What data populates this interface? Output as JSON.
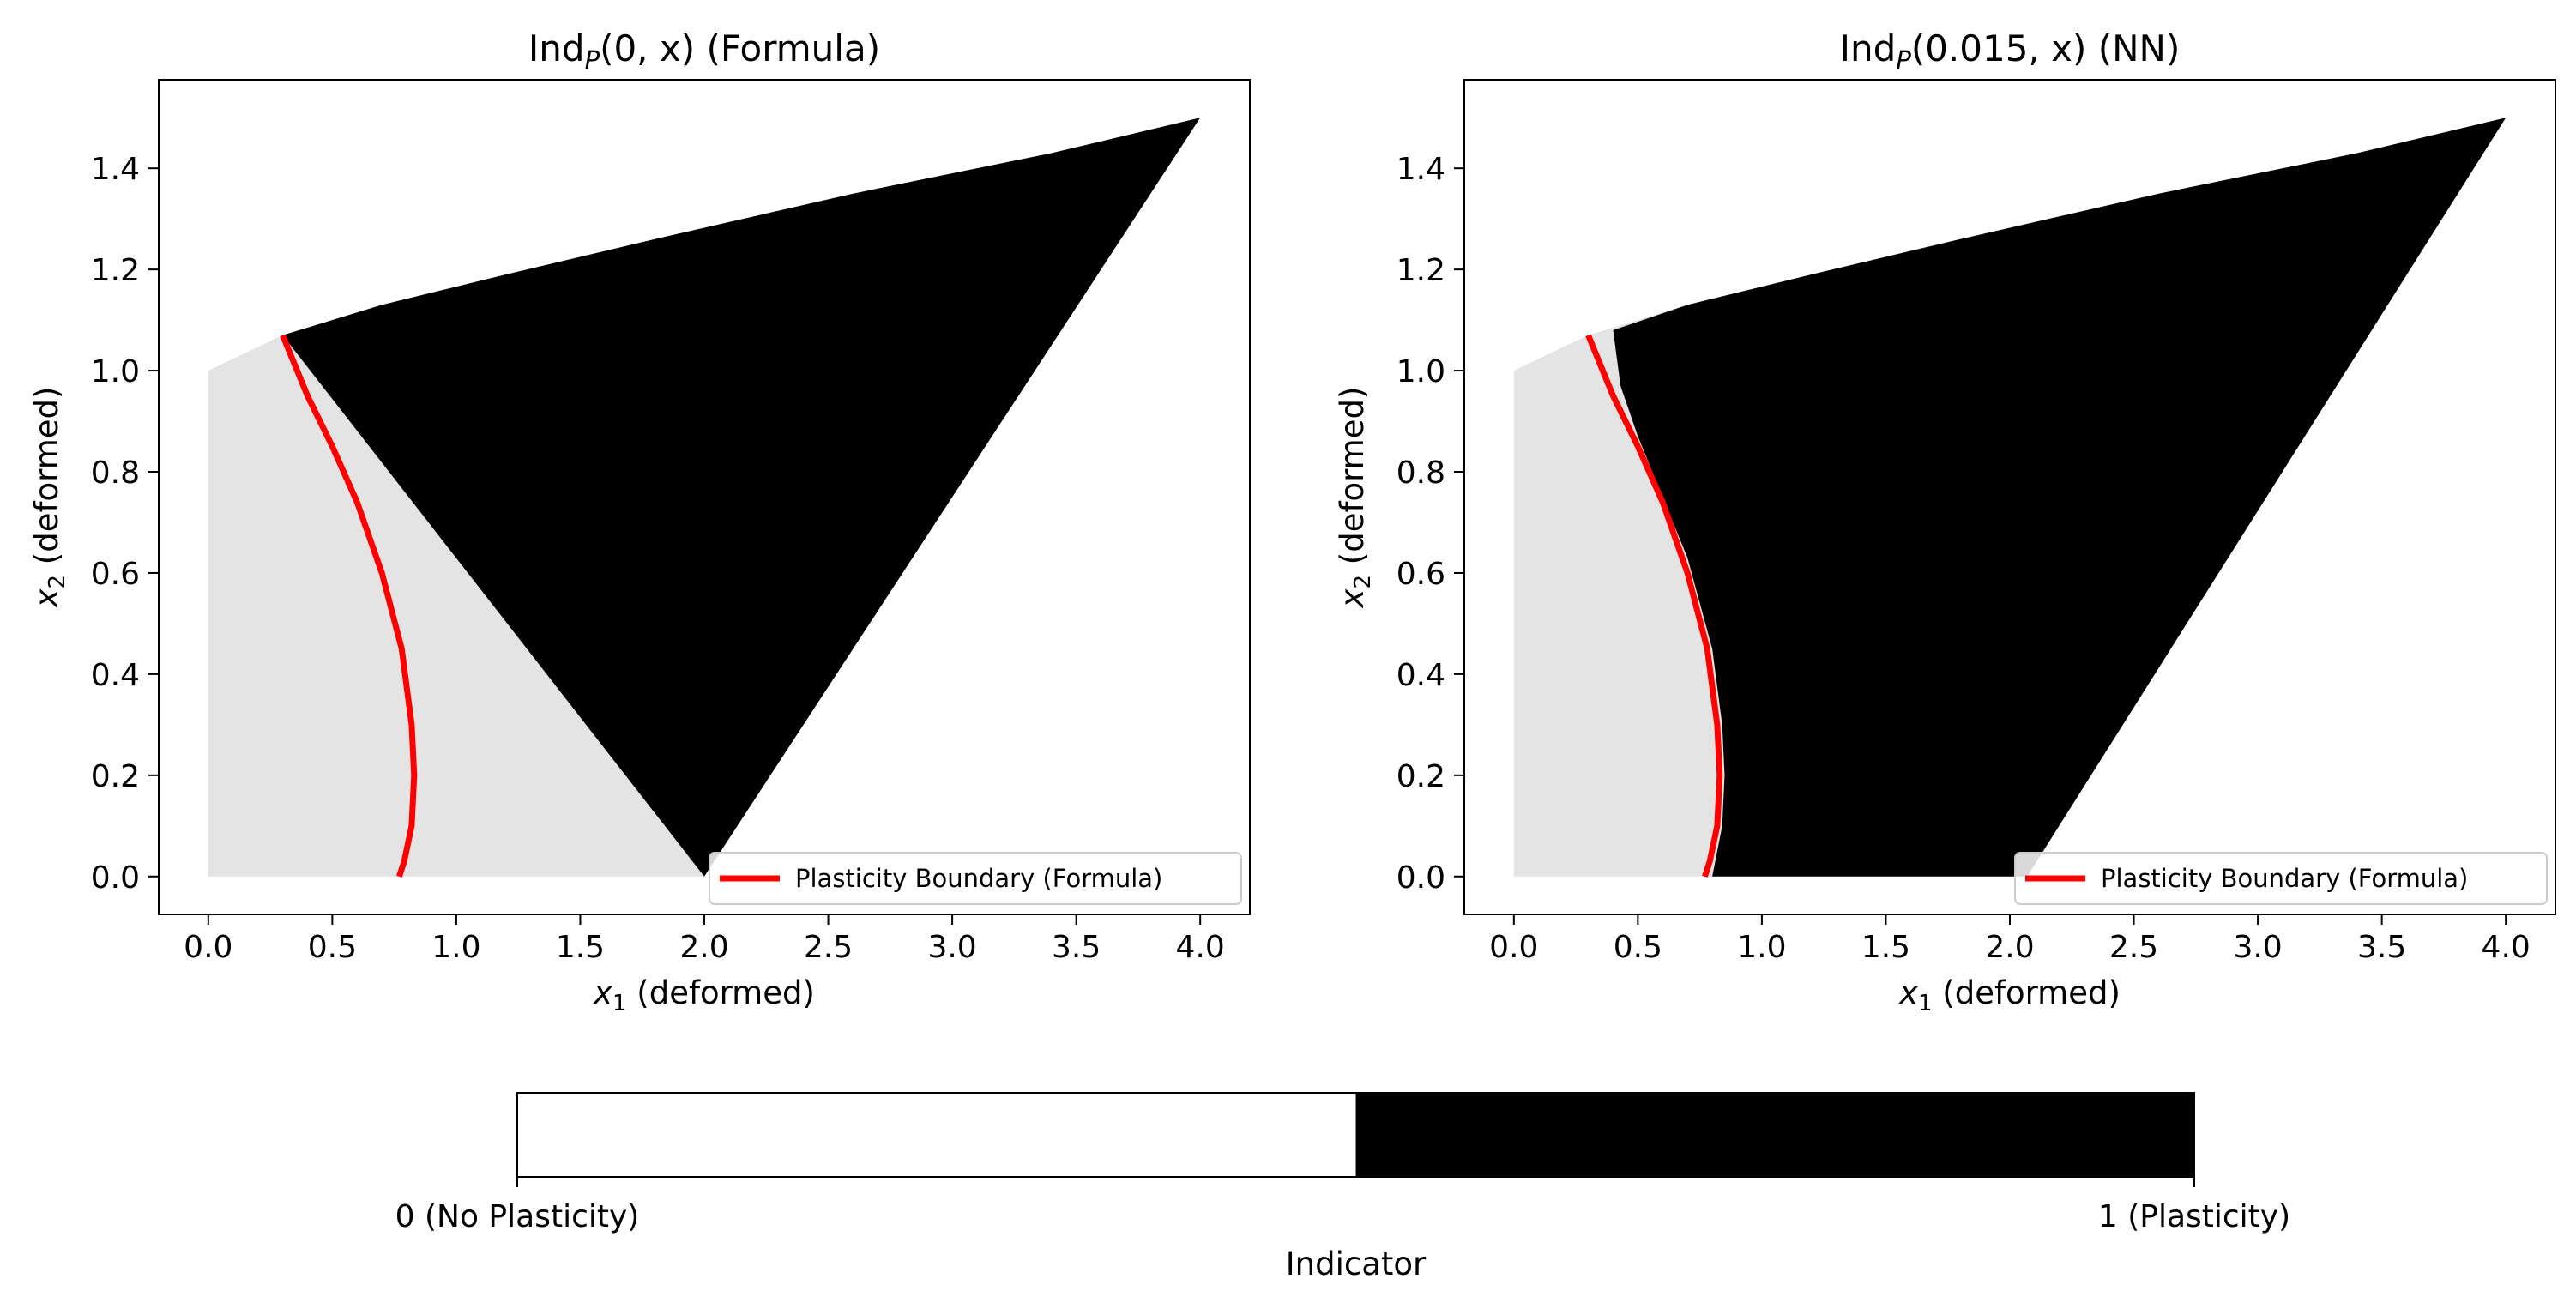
{
  "colors": {
    "no_plasticity": "#e4e4e4",
    "plasticity": "#000000",
    "boundary": "#ff0000",
    "axes": "#000000"
  },
  "chart_data": [
    {
      "type": "heatmap",
      "title_prefix": "Ind",
      "title_sub": "P",
      "title_args": "(0, x)",
      "title_suffix": " (Formula)",
      "xlabel_sym": "x",
      "xlabel_sub": "1",
      "xlabel_rest": " (deformed)",
      "ylabel_sym": "x",
      "ylabel_sub": "2",
      "ylabel_rest": " (deformed)",
      "xlim": [
        -0.2,
        4.2
      ],
      "ylim": [
        -0.075,
        1.575
      ],
      "xticks": [
        0.0,
        0.5,
        1.0,
        1.5,
        2.0,
        2.5,
        3.0,
        3.5,
        4.0
      ],
      "xtick_labels": [
        "0.0",
        "0.5",
        "1.0",
        "1.5",
        "2.0",
        "2.5",
        "3.0",
        "3.5",
        "4.0"
      ],
      "yticks": [
        0.0,
        0.2,
        0.4,
        0.6,
        0.8,
        1.0,
        1.2,
        1.4
      ],
      "ytick_labels": [
        "0.0",
        "0.2",
        "0.4",
        "0.6",
        "0.8",
        "1.0",
        "1.2",
        "1.4"
      ],
      "domain_outline": [
        [
          0,
          0
        ],
        [
          2.0,
          0
        ],
        [
          4.0,
          1.5
        ],
        [
          3.4,
          1.43
        ],
        [
          2.6,
          1.35
        ],
        [
          1.8,
          1.26
        ],
        [
          1.2,
          1.19
        ],
        [
          0.7,
          1.13
        ],
        [
          0.3,
          1.07
        ],
        [
          0,
          1.0
        ]
      ],
      "plastic_region": [
        [
          0.3,
          1.07
        ],
        [
          0.7,
          1.13
        ],
        [
          1.2,
          1.19
        ],
        [
          1.8,
          1.26
        ],
        [
          2.6,
          1.35
        ],
        [
          3.4,
          1.43
        ],
        [
          4.0,
          1.5
        ],
        [
          2.0,
          0
        ]
      ],
      "boundary": [
        [
          0.3,
          1.07
        ],
        [
          0.4,
          0.95
        ],
        [
          0.5,
          0.85
        ],
        [
          0.6,
          0.74
        ],
        [
          0.7,
          0.6
        ],
        [
          0.78,
          0.45
        ],
        [
          0.82,
          0.3
        ],
        [
          0.83,
          0.2
        ],
        [
          0.82,
          0.1
        ],
        [
          0.79,
          0.03
        ],
        [
          0.77,
          0.0
        ]
      ],
      "legend_label": "Plasticity Boundary (Formula)",
      "legend_position": "lower-right"
    },
    {
      "type": "heatmap",
      "title_prefix": "Ind",
      "title_sub": "P",
      "title_args": "(0.015, x)",
      "title_suffix": " (NN)",
      "xlabel_sym": "x",
      "xlabel_sub": "1",
      "xlabel_rest": " (deformed)",
      "ylabel_sym": "x",
      "ylabel_sub": "2",
      "ylabel_rest": " (deformed)",
      "xlim": [
        -0.2,
        4.2
      ],
      "ylim": [
        -0.075,
        1.575
      ],
      "xticks": [
        0.0,
        0.5,
        1.0,
        1.5,
        2.0,
        2.5,
        3.0,
        3.5,
        4.0
      ],
      "xtick_labels": [
        "0.0",
        "0.5",
        "1.0",
        "1.5",
        "2.0",
        "2.5",
        "3.0",
        "3.5",
        "4.0"
      ],
      "yticks": [
        0.0,
        0.2,
        0.4,
        0.6,
        0.8,
        1.0,
        1.2,
        1.4
      ],
      "ytick_labels": [
        "0.0",
        "0.2",
        "0.4",
        "0.6",
        "0.8",
        "1.0",
        "1.2",
        "1.4"
      ],
      "domain_outline": [
        [
          0,
          0
        ],
        [
          2.0,
          0
        ],
        [
          4.0,
          1.5
        ],
        [
          3.4,
          1.43
        ],
        [
          2.6,
          1.35
        ],
        [
          1.8,
          1.26
        ],
        [
          1.2,
          1.19
        ],
        [
          0.7,
          1.13
        ],
        [
          0.3,
          1.07
        ],
        [
          0,
          1.0
        ]
      ],
      "plastic_region": [
        [
          0.4,
          1.08
        ],
        [
          0.7,
          1.13
        ],
        [
          1.2,
          1.19
        ],
        [
          1.8,
          1.26
        ],
        [
          2.6,
          1.35
        ],
        [
          3.4,
          1.43
        ],
        [
          4.0,
          1.5
        ],
        [
          2.07,
          0
        ],
        [
          0.8,
          0
        ],
        [
          0.84,
          0.1
        ],
        [
          0.85,
          0.2
        ],
        [
          0.84,
          0.3
        ],
        [
          0.8,
          0.45
        ],
        [
          0.7,
          0.63
        ],
        [
          0.6,
          0.75
        ],
        [
          0.5,
          0.87
        ],
        [
          0.43,
          0.97
        ]
      ],
      "boundary": [
        [
          0.3,
          1.07
        ],
        [
          0.4,
          0.95
        ],
        [
          0.5,
          0.85
        ],
        [
          0.6,
          0.74
        ],
        [
          0.7,
          0.6
        ],
        [
          0.78,
          0.45
        ],
        [
          0.82,
          0.3
        ],
        [
          0.83,
          0.2
        ],
        [
          0.82,
          0.1
        ],
        [
          0.79,
          0.03
        ],
        [
          0.77,
          0.0
        ]
      ],
      "legend_label": "Plasticity Boundary (Formula)",
      "legend_position": "lower-right"
    }
  ],
  "colorbar": {
    "label": "Indicator",
    "ticks": [
      0,
      1
    ],
    "tick_labels": [
      "0 (No Plasticity)",
      "1 (Plasticity)"
    ],
    "colors": [
      "#ffffff",
      "#000000"
    ]
  }
}
